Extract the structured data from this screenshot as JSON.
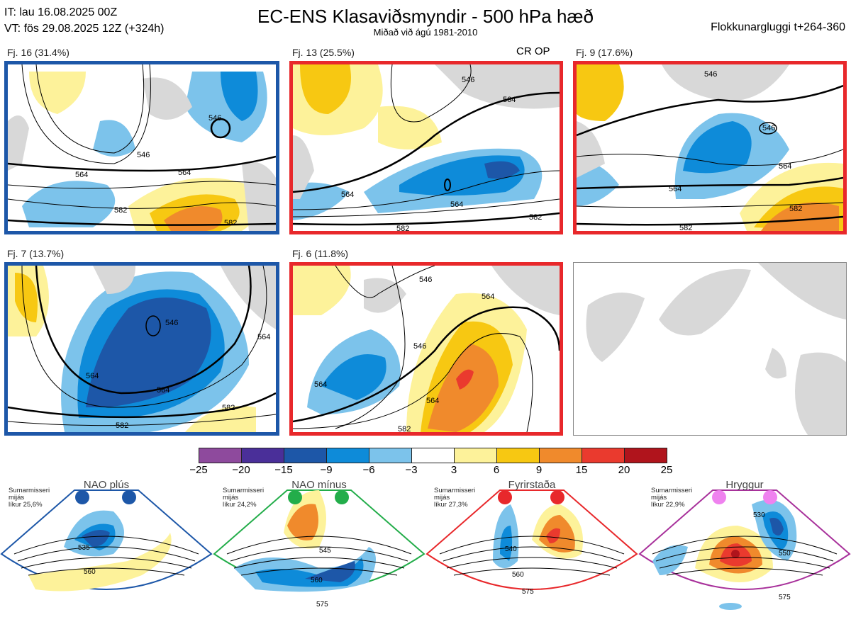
{
  "header": {
    "it": "IT: lau 16.08.2025 00Z",
    "vt": "VT: fös 29.08.2025 12Z  (+324h)",
    "title": "EC-ENS Klasaviðsmyndir - 500 hPa hæð",
    "subtitle": "Miðað við ágú 1981-2010",
    "window": "Flokkunargluggi t+264-360"
  },
  "panels": [
    {
      "label": "Fj. 16 (31.4%)",
      "regime_color": "#1d57a8",
      "contours": [
        "546",
        "564",
        "582",
        "582",
        "564",
        "546"
      ]
    },
    {
      "label": "Fj. 13 (25.5%)",
      "regime_color": "#e8282b",
      "marker": "CR OP",
      "contours": [
        "546",
        "564",
        "564",
        "564",
        "582",
        "582"
      ]
    },
    {
      "label": "Fj. 9 (17.6%)",
      "regime_color": "#e8282b",
      "contours": [
        "546",
        "546",
        "564",
        "564",
        "582",
        "582"
      ]
    },
    {
      "label": "Fj. 7 (13.7%)",
      "regime_color": "#1d57a8",
      "contours": [
        "546",
        "564",
        "564",
        "582",
        "582",
        "564"
      ]
    },
    {
      "label": "Fj. 6 (11.8%)",
      "regime_color": "#e8282b",
      "contours": [
        "546",
        "564",
        "546",
        "564",
        "564",
        "582"
      ]
    }
  ],
  "colorbar": {
    "ticks": [
      "−25",
      "−20",
      "−15",
      "−9",
      "−6",
      "−3",
      "3",
      "6",
      "9",
      "15",
      "20",
      "25"
    ],
    "colors": [
      "#8e4a9d",
      "#4a2f99",
      "#1d57a8",
      "#0e8bd9",
      "#7cc3eb",
      "#ffffff",
      "#fdf29a",
      "#f7c812",
      "#f08a2c",
      "#ea3a2e",
      "#b0141c"
    ]
  },
  "regimes": [
    {
      "name": "NAO plús",
      "note": [
        "Sumarmisseri",
        "mijás",
        "líkur 25,6%"
      ],
      "color": "#1d57a8",
      "contours": [
        "535",
        "560"
      ]
    },
    {
      "name": "NAO mínus",
      "note": [
        "Sumarmisseri",
        "mijás",
        "líkur 24,2%"
      ],
      "color": "#23ad4a",
      "contours": [
        "545",
        "560",
        "575"
      ]
    },
    {
      "name": "Fyrirstaða",
      "note": [
        "Sumarmisseri",
        "mijás",
        "líkur 27,3%"
      ],
      "color": "#e8282b",
      "contours": [
        "540",
        "560",
        "575"
      ]
    },
    {
      "name": "Hryggur",
      "note": [
        "Sumarmisseri",
        "mijás",
        "líkur 22,9%"
      ],
      "color": "#a8319b",
      "dot_color": "#ef82ef",
      "contours": [
        "530",
        "550",
        "575"
      ]
    }
  ]
}
